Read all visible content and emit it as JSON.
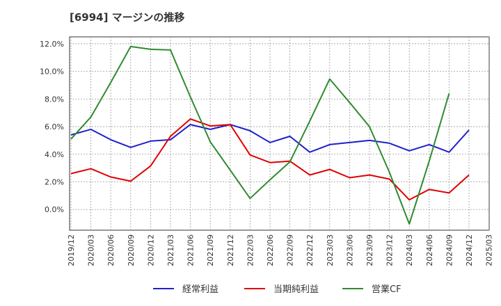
{
  "chart_data": {
    "type": "line",
    "title": "[6994]  マージンの推移",
    "xlabel": "",
    "ylabel": "",
    "ylim": [
      -1.5,
      12.5
    ],
    "yticks": [
      "12.0%",
      "10.0%",
      "8.0%",
      "6.0%",
      "4.0%",
      "2.0%",
      "0.0%"
    ],
    "x": [
      "2019/12",
      "2020/03",
      "2020/06",
      "2020/09",
      "2020/12",
      "2021/03",
      "2021/06",
      "2021/09",
      "2021/12",
      "2022/03",
      "2022/06",
      "2022/09",
      "2022/12",
      "2023/03",
      "2023/06",
      "2023/09",
      "2023/12",
      "2024/03",
      "2024/06",
      "2024/09",
      "2024/12",
      "2025/03"
    ],
    "grid": true,
    "legend_position": "bottom",
    "series": [
      {
        "name": "経常利益",
        "color": "#1f1fcc",
        "values": [
          5.4,
          5.8,
          5.05,
          4.5,
          4.95,
          5.05,
          6.15,
          5.8,
          6.15,
          5.7,
          4.85,
          5.3,
          4.15,
          4.7,
          4.85,
          5.0,
          4.8,
          4.25,
          4.7,
          4.15,
          5.75,
          null
        ]
      },
      {
        "name": "当期純利益",
        "color": "#e00000",
        "values": [
          2.6,
          2.95,
          2.35,
          2.05,
          3.15,
          5.3,
          6.55,
          6.05,
          6.15,
          3.95,
          3.4,
          3.5,
          2.5,
          2.9,
          2.3,
          2.5,
          2.2,
          0.7,
          1.45,
          1.2,
          2.5,
          null
        ]
      },
      {
        "name": "営業CF",
        "color": "#2e8b2e",
        "values": [
          5.1,
          6.7,
          9.2,
          11.8,
          11.6,
          11.55,
          8.15,
          4.9,
          2.85,
          0.8,
          2.15,
          3.45,
          6.4,
          9.45,
          7.75,
          6.0,
          2.7,
          -1.05,
          3.5,
          8.4,
          null,
          null
        ]
      }
    ]
  }
}
